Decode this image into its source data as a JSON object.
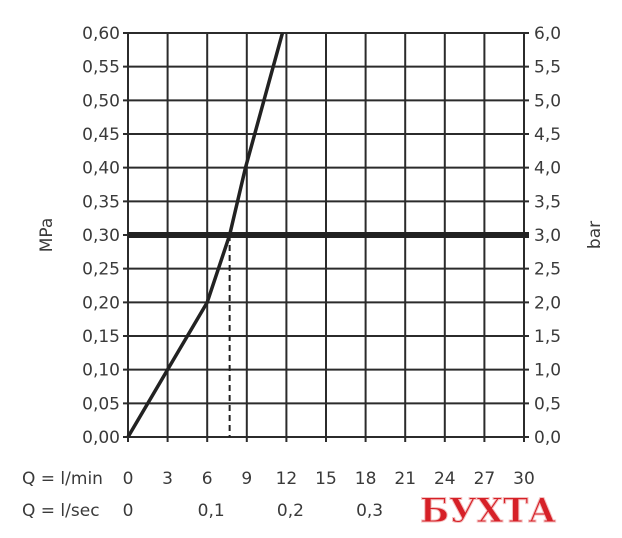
{
  "chart_data": {
    "type": "line",
    "ylabel_left": "MPa",
    "ylabel_right": "bar",
    "x_row_label": "Q = l/min",
    "x2_row_label": "Q = l/sec",
    "xlim": [
      0,
      30
    ],
    "ylim": [
      0,
      0.6
    ],
    "x_ticks": [
      "0",
      "3",
      "6",
      "9",
      "12",
      "15",
      "18",
      "21",
      "24",
      "27",
      "30"
    ],
    "x_tick_values": [
      0,
      3,
      6,
      9,
      12,
      15,
      18,
      21,
      24,
      27,
      30
    ],
    "x2_ticks": [
      "0",
      "0,1",
      "0,2",
      "0,3"
    ],
    "x2_tick_values_lmin": [
      0,
      6,
      12,
      18
    ],
    "y_ticks_left": [
      "0,00",
      "0,05",
      "0,10",
      "0,15",
      "0,20",
      "0,25",
      "0,30",
      "0,35",
      "0,40",
      "0,45",
      "0,50",
      "0,55",
      "0,60"
    ],
    "y_ticks_right": [
      "0,0",
      "0,5",
      "1,0",
      "1,5",
      "2,0",
      "2,5",
      "3,0",
      "3,5",
      "4,0",
      "4,5",
      "5,0",
      "5,5",
      "6,0"
    ],
    "grid": true,
    "series": [
      {
        "x": [
          0,
          3,
          4.5,
          6,
          7.7,
          8.9,
          10.3,
          11.7
        ],
        "y": [
          0,
          0.1,
          0.15,
          0.2,
          0.3,
          0.4,
          0.5,
          0.6
        ]
      }
    ],
    "reference_line_y": 0.3,
    "reference_dashed_x": 7.7,
    "colors": {
      "line": "#222222",
      "grid": "#2b2b2b",
      "text": "#3a3a3a"
    }
  },
  "watermark": {
    "text": "БУХТА",
    "color": "#d62027"
  }
}
